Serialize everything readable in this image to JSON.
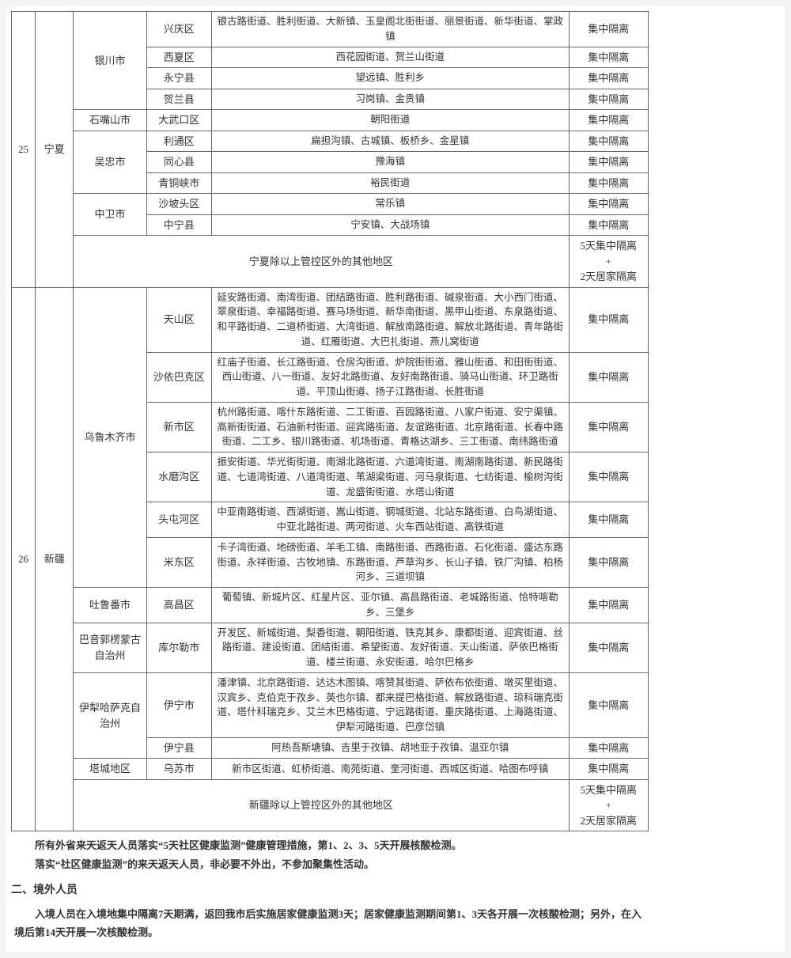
{
  "rows": [
    {
      "idx": "25",
      "prov": "宁夏",
      "city": "银川市",
      "dist": "兴庆区",
      "detail": "银古路街道、胜利街道、大新镇、玉皇阁北街街道、丽景街道、新华街道、掌政镇",
      "measure": "集中隔离"
    },
    {
      "city_rows": "",
      "dist": "西夏区",
      "detail": "西花园街道、贺兰山街道",
      "measure": "集中隔离"
    },
    {
      "dist": "永宁县",
      "detail": "望远镇、胜利乡",
      "measure": "集中隔离"
    },
    {
      "dist": "贺兰县",
      "detail": "习岗镇、金贵镇",
      "measure": "集中隔离"
    },
    {
      "city": "石嘴山市",
      "dist": "大武口区",
      "detail": "朝阳街道",
      "measure": "集中隔离"
    },
    {
      "city": "吴忠市",
      "dist": "利通区",
      "detail": "扁担沟镇、古城镇、板桥乡、金星镇",
      "measure": "集中隔离"
    },
    {
      "dist": "同心县",
      "detail": "豫海镇",
      "measure": "集中隔离"
    },
    {
      "dist": "青铜峡市",
      "detail": "裕民街道",
      "measure": "集中隔离"
    },
    {
      "city": "中卫市",
      "dist": "沙坡头区",
      "detail": "常乐镇",
      "measure": "集中隔离"
    },
    {
      "dist": "中宁县",
      "detail": "宁安镇、大战场镇",
      "measure": "集中隔离"
    },
    {
      "other": "宁夏除以上管控区外的其他地区",
      "measure": "5天集中隔离\n+\n2天居家隔离"
    },
    {
      "idx": "26",
      "prov": "新疆",
      "city": "乌鲁木齐市",
      "dist": "天山区",
      "detail": "延安路街道、南湾街道、团结路街道、胜利路街道、碱泉街道、大小西门街道、翠泉街道、幸福路街道、赛马场街道、新华南街道、黑甲山街道、东泉路街道、和平路街道、二道桥街道、大湾街道、解放南路街道、解放北路街道、青年路街道、红雁街道、大巴扎街道、燕儿窝街道",
      "measure": "集中隔离"
    },
    {
      "dist": "沙依巴克区",
      "detail": "红庙子街道、长江路街道、仓房沟街道、炉院街街道、雅山街道、和田街街道、西山街道、八一街道、友好北路街道、友好南路街道、骑马山街道、环卫路街道、平顶山街道、扬子江路街道、长胜街道",
      "measure": "集中隔离"
    },
    {
      "dist": "新市区",
      "detail": "杭州路街道、喀什东路街道、二工街道、百园路街道、八家户街道、安宁渠镇、高新街街道、石油新村街道、迎宾路街道、友谊路街道、北京路街道、长春中路街道、二工乡、银川路街道、机场街道、青格达湖乡、三工街道、南纬路街道",
      "measure": "集中隔离"
    },
    {
      "dist": "水磨沟区",
      "detail": "振安街道、华光街街道、南湖北路街道、六道湾街道、南湖南路街道、新民路街道、七道湾街道、八道湾街道、苇湖梁街道、河马泉街道、七纺街道、榆树沟街道、龙盛街街道、水塔山街道",
      "measure": "集中隔离"
    },
    {
      "dist": "头屯河区",
      "detail": "中亚南路街道、西湖街道、嵩山街道、钢城街道、北站东路街道、白鸟湖街道、中亚北路街道、两河街道、火车西站街道、高铁街道",
      "measure": "集中隔离"
    },
    {
      "dist": "米东区",
      "detail": "卡子湾街道、地磅街道、羊毛工镇、南路街道、西路街道、石化街道、盛达东路街道、永祥街道、古牧地镇、东路街道、芦草沟乡、长山子镇、铁厂沟镇、柏杨河乡、三道坝镇",
      "measure": "集中隔离"
    },
    {
      "city": "吐鲁番市",
      "dist": "高昌区",
      "detail": "葡萄镇、新城片区、红星片区、亚尔镇、高昌路街道、老城路街道、恰特喀勒乡、三堡乡",
      "measure": "集中隔离"
    },
    {
      "city": "巴音郭楞蒙古自治州",
      "dist": "库尔勒市",
      "detail": "开发区、新城街道、梨香街道、朝阳街道、铁克其乡、康都街道、迎宾街道、丝路街道、建设街道、团结街道、希望街道、友好街道、天山街道、萨依巴格街道、楼兰街道、永安街道、哈尔巴格乡",
      "measure": "集中隔离"
    },
    {
      "city": "伊犁哈萨克自治州",
      "dist": "伊宁市",
      "detail": "潘津镇、北京路街道、达达木图镇、喀赞其街道、萨依布依街道、墩买里街道、汉宾乡、克伯克于孜乡、英也尔镇、都来提巴格街道、解放路街道、琼科瑞克街道、塔什科瑞克乡、艾兰木巴格街道、宁远路街道、重庆路街道、上海路街道、伊犁河路街道、巴彦岱镇",
      "measure": "集中隔离"
    },
    {
      "dist": "伊宁县",
      "detail": "阿热吾斯塘镇、吉里于孜镇、胡地亚于孜镇、温亚尔镇",
      "measure": "集中隔离"
    },
    {
      "city": "塔城地区",
      "dist": "乌苏市",
      "detail": "新市区街道、虹桥街道、南苑街道、奎河街道、西城区街道、哈图布呼镇",
      "measure": "集中隔离"
    },
    {
      "other": "新疆除以上管控区外的其他地区",
      "measure": "5天集中隔离\n+\n2天居家隔离"
    }
  ],
  "note1": "所有外省来天返天人员落实“5天社区健康监测”健康管理措施，第1、2、3、5天开展核酸检测。",
  "note2": "落实“社区健康监测”的来天返天人员，非必要不外出，不参加聚集性活动。",
  "section2": "二、境外人员",
  "note3": "入境人员在入境地集中隔离7天期满，返回我市后实施居家健康监测3天；居家健康监测期间第1、3天各开展一次核酸检测；另外，在入境后第14天开展一次核酸检测。"
}
